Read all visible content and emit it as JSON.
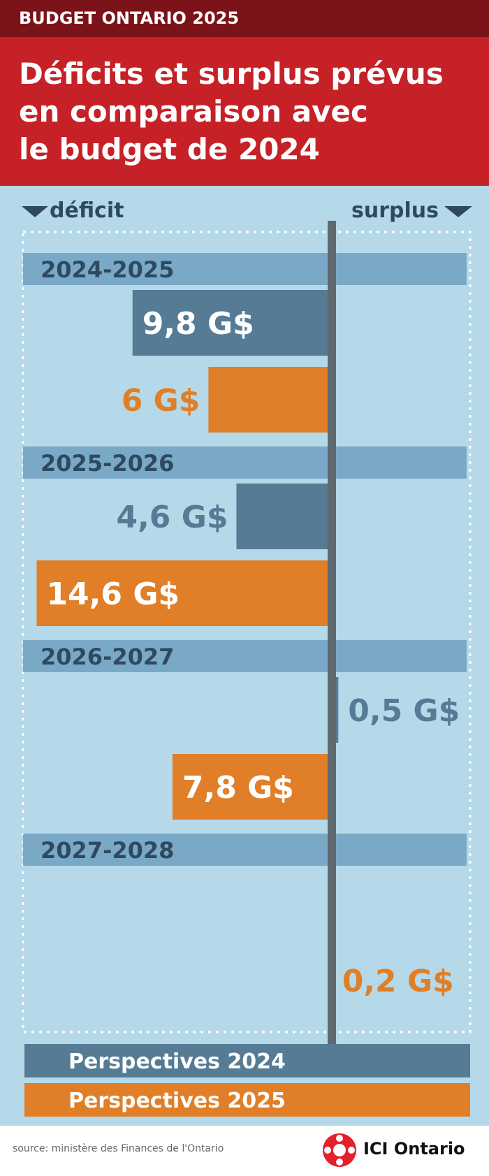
{
  "header": {
    "tag": "BUDGET ONTARIO 2025",
    "title_lines": [
      "Déficits et surplus prévus",
      "en comparaison avec",
      "le budget de 2024"
    ]
  },
  "legend": {
    "items": [
      {
        "label": "Perspectives 2024",
        "color": "#567b95"
      },
      {
        "label": "Perspectives 2025",
        "color": "#e07f27"
      }
    ]
  },
  "chart_data": {
    "type": "bar",
    "orientation": "horizontal",
    "deficit_label": "déficit",
    "surplus_label": "surplus",
    "categories": [
      "2024-2025",
      "2025-2026",
      "2026-2027",
      "2027-2028"
    ],
    "series": [
      {
        "name": "Perspectives 2024",
        "values": [
          -9.8,
          -4.6,
          0.5,
          null
        ],
        "labels": [
          "9,8 G$",
          "4,6 G$",
          "0,5 G$",
          ""
        ]
      },
      {
        "name": "Perspectives 2025",
        "values": [
          -6,
          -14.6,
          -7.8,
          0.2
        ],
        "labels": [
          "6 G$",
          "14,6 G$",
          "7,8 G$",
          "0,2 G$"
        ]
      }
    ],
    "colors": {
      "series_2024": "#567b95",
      "series_2025": "#e07f27",
      "category_band": "#7aa9c8",
      "axis": "#5f6a70",
      "category_text": "#2f4a5e"
    }
  },
  "footer": {
    "source": "source: ministère des Finances de l'Ontario",
    "brand": "ICI Ontario",
    "brand_icon": "radio-canada-gem-icon"
  }
}
